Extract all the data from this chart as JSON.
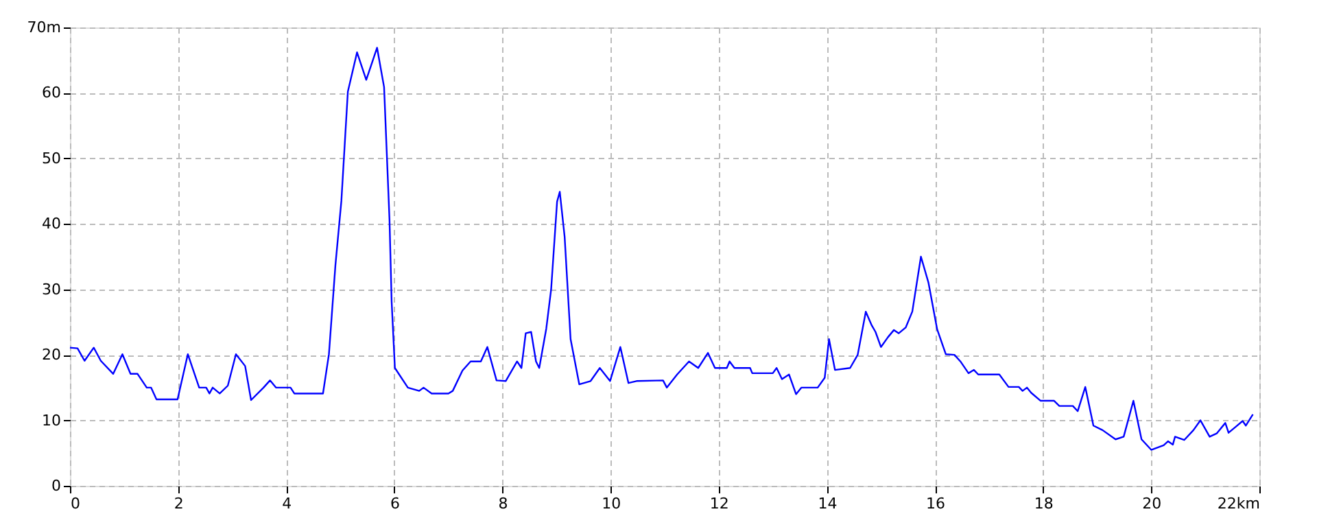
{
  "chart_data": {
    "type": "line",
    "x": [
      0,
      0.14,
      0.27,
      0.44,
      0.57,
      0.8,
      0.97,
      1.12,
      1.25,
      1.42,
      1.5,
      1.6,
      1.99,
      2.18,
      2.39,
      2.52,
      2.58,
      2.64,
      2.77,
      2.92,
      3.07,
      3.24,
      3.35,
      3.58,
      3.7,
      3.81,
      4.08,
      4.15,
      4.68,
      4.79,
      4.91,
      5.02,
      5.14,
      5.31,
      5.48,
      5.68,
      5.81,
      5.91,
      5.95,
      6.01,
      6.25,
      6.46,
      6.54,
      6.69,
      7.0,
      7.08,
      7.26,
      7.41,
      7.6,
      7.72,
      7.89,
      8.06,
      8.27,
      8.35,
      8.43,
      8.53,
      8.62,
      8.68,
      8.81,
      8.9,
      9.01,
      9.06,
      9.15,
      9.26,
      9.42,
      9.63,
      9.8,
      9.99,
      10.18,
      10.33,
      10.48,
      10.97,
      11.04,
      11.23,
      11.45,
      11.62,
      11.8,
      11.93,
      12.15,
      12.2,
      12.29,
      12.58,
      12.62,
      13.0,
      13.07,
      13.17,
      13.3,
      13.43,
      13.53,
      13.83,
      13.96,
      14.04,
      14.15,
      14.43,
      14.57,
      14.72,
      14.83,
      14.9,
      15.0,
      15.13,
      15.24,
      15.33,
      15.46,
      15.58,
      15.74,
      15.88,
      16.04,
      16.2,
      16.36,
      16.47,
      16.62,
      16.72,
      16.8,
      17.19,
      17.36,
      17.55,
      17.62,
      17.7,
      17.78,
      17.95,
      18.2,
      18.3,
      18.55,
      18.64,
      18.78,
      18.93,
      19.1,
      19.34,
      19.49,
      19.67,
      19.82,
      20.0,
      20.23,
      20.31,
      20.4,
      20.44,
      20.61,
      20.78,
      20.91,
      21.08,
      21.21,
      21.37,
      21.43,
      21.56,
      21.69,
      21.75,
      21.88
    ],
    "series": [
      {
        "color": "#0000ff",
        "values": [
          21.1,
          21,
          19.1,
          21.1,
          19.1,
          17.1,
          20.1,
          17.1,
          17.1,
          15,
          15,
          13.2,
          13.2,
          20.1,
          15,
          15,
          14.1,
          15,
          14.1,
          15.3,
          20.1,
          18.3,
          13.1,
          15,
          16.1,
          15,
          15,
          14.1,
          14.1,
          20.1,
          33.7,
          43.5,
          60.2,
          66.2,
          62,
          66.9,
          60.9,
          40.7,
          28.1,
          18,
          15,
          14.5,
          15,
          14.1,
          14.1,
          14.5,
          17.6,
          19,
          19,
          21.2,
          16.1,
          16,
          19,
          18,
          23.3,
          23.5,
          19,
          18,
          24,
          30,
          43.4,
          44.9,
          38,
          22.4,
          15.5,
          16,
          18,
          16,
          21.2,
          15.7,
          16,
          16.1,
          15,
          17,
          19,
          18,
          20.3,
          18,
          18,
          19,
          18,
          18,
          17.2,
          17.2,
          18,
          16.3,
          17,
          14,
          15,
          15,
          16.5,
          22.4,
          17.7,
          18,
          20,
          26.6,
          24.5,
          23.5,
          21.2,
          22.7,
          23.8,
          23.3,
          24.2,
          26.6,
          35,
          31,
          23.9,
          20.1,
          20,
          19,
          17.2,
          17.7,
          17,
          17,
          15.1,
          15.1,
          14.5,
          15,
          14.2,
          13,
          13,
          12.2,
          12.2,
          11.4,
          15.1,
          9.2,
          8.5,
          7.1,
          7.5,
          13,
          7.1,
          5.5,
          6.2,
          6.8,
          6.3,
          7.5,
          7,
          8.5,
          10,
          7.5,
          8,
          9.6,
          8.1,
          9,
          9.9,
          9.2,
          10.9
        ]
      }
    ],
    "xlim": [
      0,
      22
    ],
    "xticks": [
      0,
      2,
      4,
      6,
      8,
      10,
      12,
      14,
      16,
      18,
      20,
      {
        "value": 22,
        "label": "22km"
      }
    ],
    "ylim": [
      0,
      70
    ],
    "yticks": [
      0,
      10,
      20,
      30,
      40,
      50,
      60,
      {
        "value": 70,
        "label": "70m"
      }
    ],
    "grid": true,
    "line_style": "solid",
    "marker": "none"
  }
}
